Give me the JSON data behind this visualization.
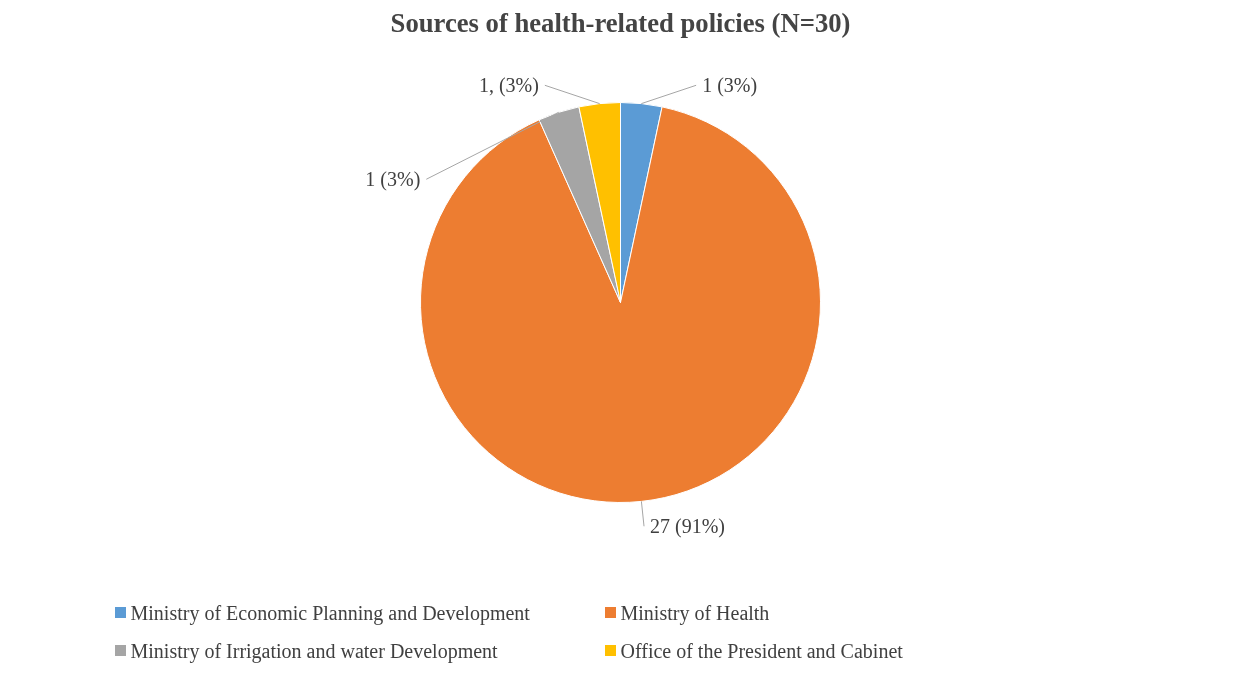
{
  "chart_data": {
    "type": "pie",
    "title": "Sources of health-related policies (N=30)",
    "categories": [
      "Ministry of Economic Planning and Development",
      "Ministry of Health",
      "Ministry of Irrigation and water Development",
      "Office of the President and Cabinet"
    ],
    "values": [
      1,
      27,
      1,
      1
    ],
    "colors": [
      "#5b9bd5",
      "#ed7d31",
      "#a5a5a5",
      "#ffc000"
    ],
    "value_labels": [
      "1 (3%)",
      "27 (91%)",
      "1 (3%)",
      "1, (3%)"
    ],
    "legend": "bottom"
  }
}
